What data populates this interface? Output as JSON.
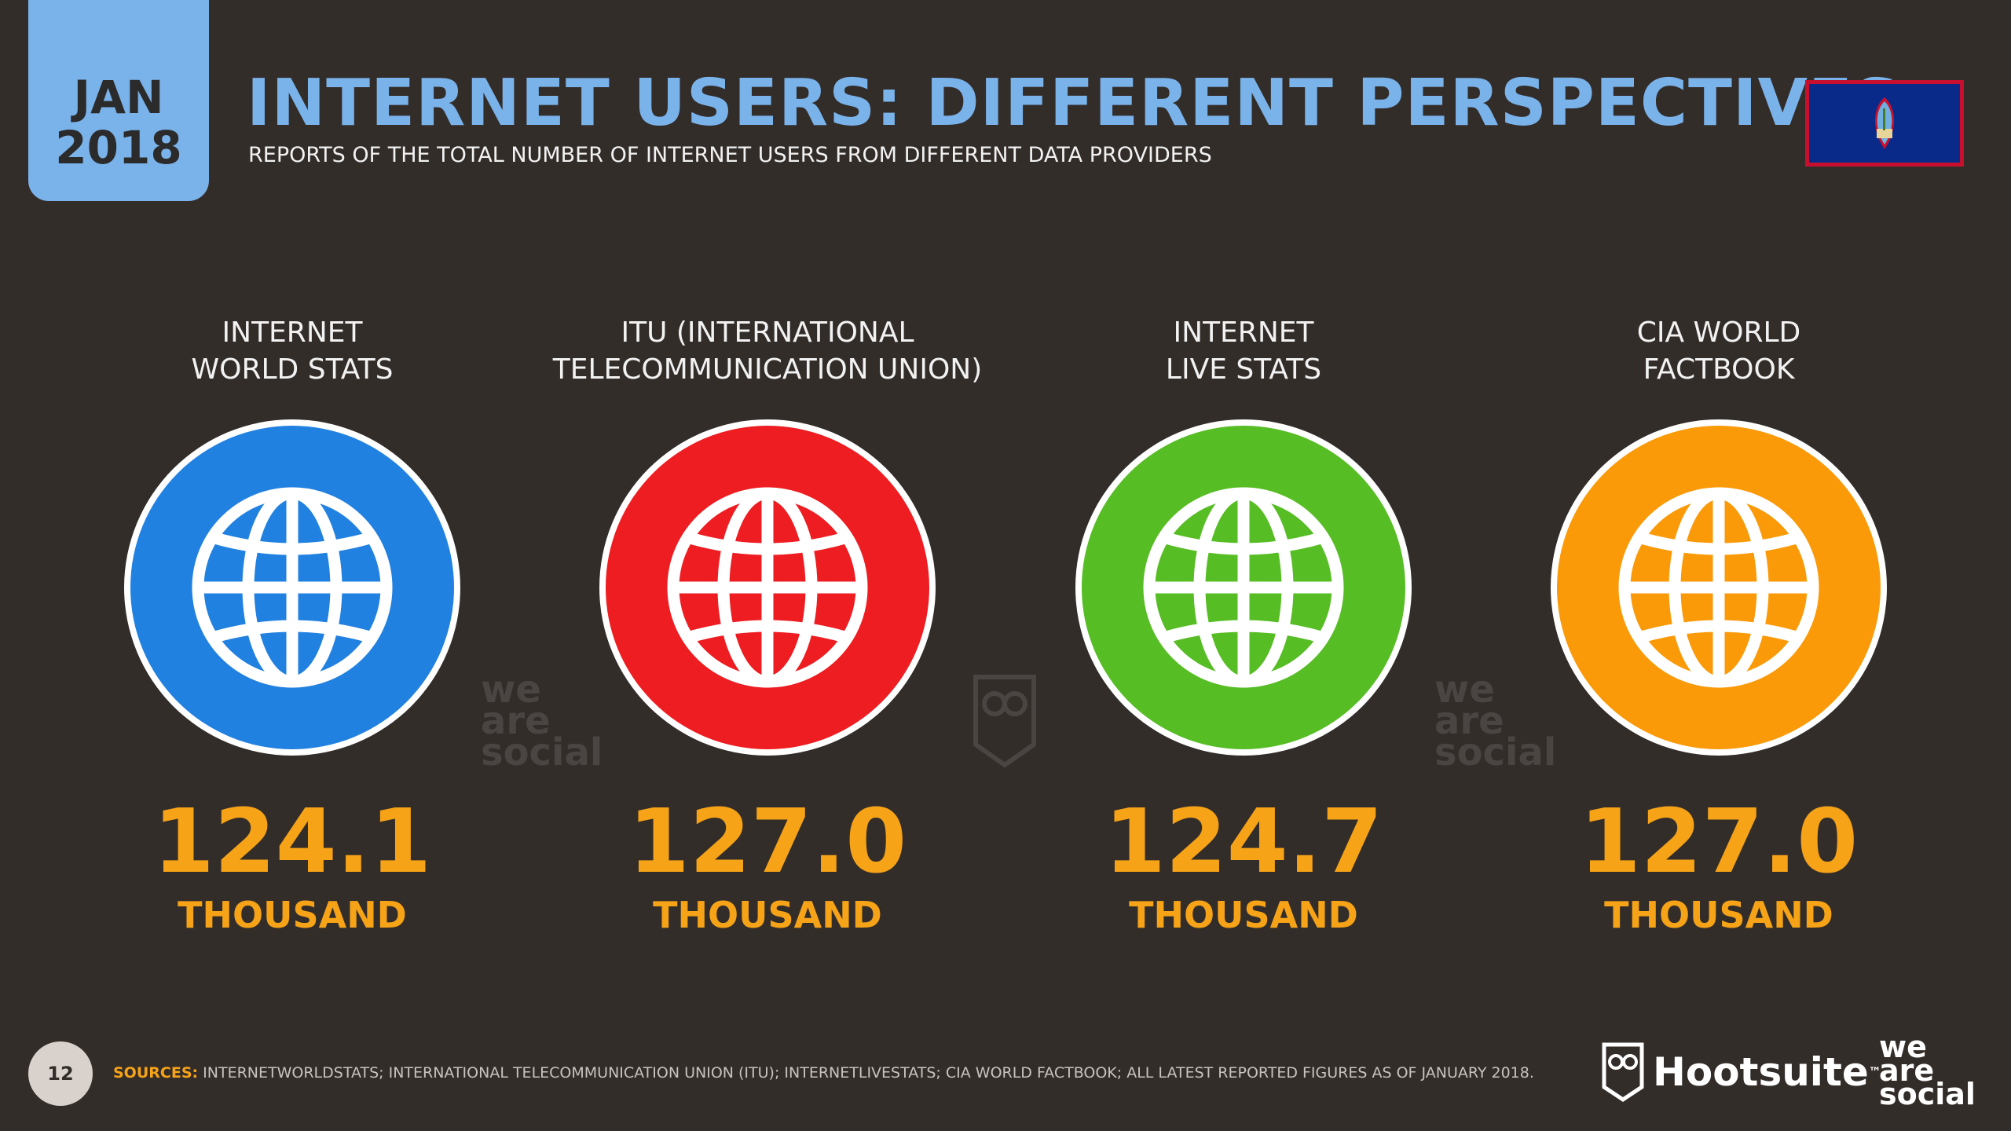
{
  "header": {
    "month": "JAN",
    "year": "2018",
    "title": "INTERNET USERS: DIFFERENT PERSPECTIVES",
    "subtitle": "REPORTS OF THE TOTAL NUMBER OF INTERNET USERS FROM DIFFERENT DATA PROVIDERS",
    "flag_icon": "guam-flag-icon"
  },
  "providers": [
    {
      "label_line1": "INTERNET",
      "label_line2": "WORLD STATS",
      "value": "124.1",
      "unit": "THOUSAND",
      "color": "#2181e0"
    },
    {
      "label_line1": "ITU (INTERNATIONAL",
      "label_line2": "TELECOMMUNICATION UNION)",
      "value": "127.0",
      "unit": "THOUSAND",
      "color": "#ed1d22"
    },
    {
      "label_line1": "INTERNET",
      "label_line2": "LIVE STATS",
      "value": "124.7",
      "unit": "THOUSAND",
      "color": "#57bd24"
    },
    {
      "label_line1": "CIA WORLD",
      "label_line2": "FACTBOOK",
      "value": "127.0",
      "unit": "THOUSAND",
      "color": "#fa9a09"
    }
  ],
  "watermark": {
    "line1": "we",
    "line2": "are",
    "line3": "social"
  },
  "footer": {
    "page_number": "12",
    "sources_key": "SOURCES:",
    "sources_text": "INTERNETWORLDSTATS; INTERNATIONAL TELECOMMUNICATION UNION (ITU); INTERNETLIVESTATS; CIA WORLD FACTBOOK; ALL LATEST REPORTED FIGURES AS OF JANUARY 2018.",
    "brand_hootsuite": "Hootsuite",
    "brand_tm": "™",
    "brand_was_1": "we",
    "brand_was_2": "are",
    "brand_was_3": "social"
  },
  "colors": {
    "background": "#332d2a",
    "accent_blue": "#7ab2ea",
    "accent_orange": "#f6a317"
  }
}
